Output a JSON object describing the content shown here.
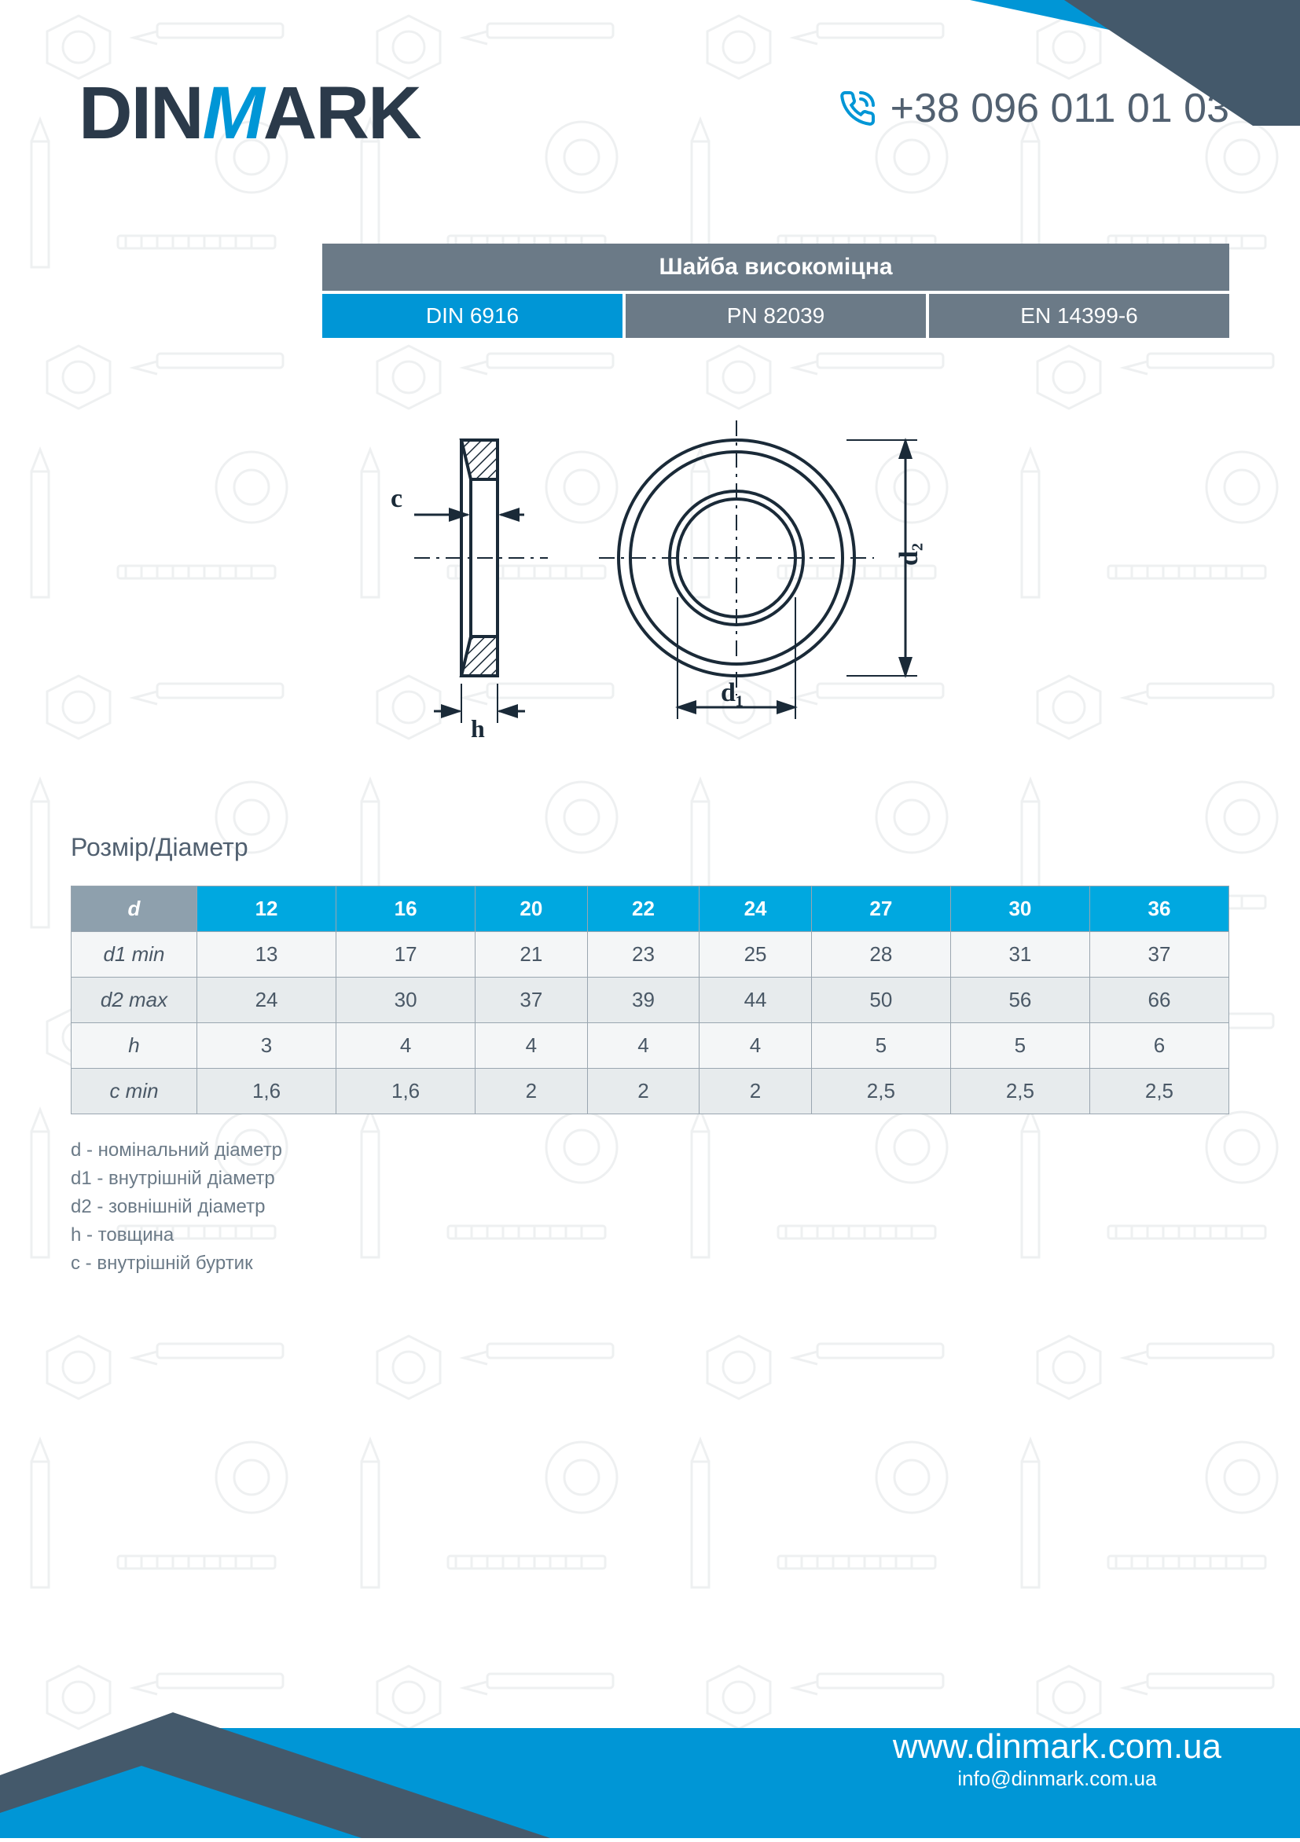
{
  "brand": {
    "part1": "DIN",
    "part2": "M",
    "part3": "ARK"
  },
  "phone": "+38 096 011 01 03",
  "title": "Шайба високоміцна",
  "standards": [
    {
      "label": "DIN 6916",
      "style": "blue"
    },
    {
      "label": "PN 82039",
      "style": "gray"
    },
    {
      "label": "EN 14399-6",
      "style": "gray"
    }
  ],
  "diagram": {
    "labels": {
      "c": "c",
      "h": "h",
      "d1": "d₁",
      "d2": "d₂"
    },
    "stroke": "#1a2a38",
    "fill_hatch": "#1a2a38"
  },
  "table": {
    "title": "Розмір/Діаметр",
    "header_param": "d",
    "sizes": [
      "12",
      "16",
      "20",
      "22",
      "24",
      "27",
      "30",
      "36"
    ],
    "rows": [
      {
        "label": "d1 min",
        "values": [
          "13",
          "17",
          "21",
          "23",
          "25",
          "28",
          "31",
          "37"
        ]
      },
      {
        "label": "d2 max",
        "values": [
          "24",
          "30",
          "37",
          "39",
          "44",
          "50",
          "56",
          "66"
        ]
      },
      {
        "label": "h",
        "values": [
          "3",
          "4",
          "4",
          "4",
          "4",
          "5",
          "5",
          "6"
        ]
      },
      {
        "label": "c min",
        "values": [
          "1,6",
          "1,6",
          "2",
          "2",
          "2",
          "2,5",
          "2,5",
          "2,5"
        ]
      }
    ],
    "header_bg": "#00a8e0",
    "header_label_bg": "#8ea0ad",
    "row_label_bg": "#c3ccd3",
    "border_color": "#9aa6b0"
  },
  "legend": [
    "d  - номінальний діаметр",
    "d1 - внутрішній діаметр",
    "d2 - зовнішній діаметр",
    "h - товщина",
    "c - внутрішній буртик"
  ],
  "footer": {
    "url": "www.dinmark.com.ua",
    "email": "info@dinmark.com.ua"
  },
  "colors": {
    "brand_blue": "#0096d6",
    "brand_dark": "#2b3a4a",
    "bar_gray": "#6b7a87",
    "text_gray": "#516070"
  }
}
